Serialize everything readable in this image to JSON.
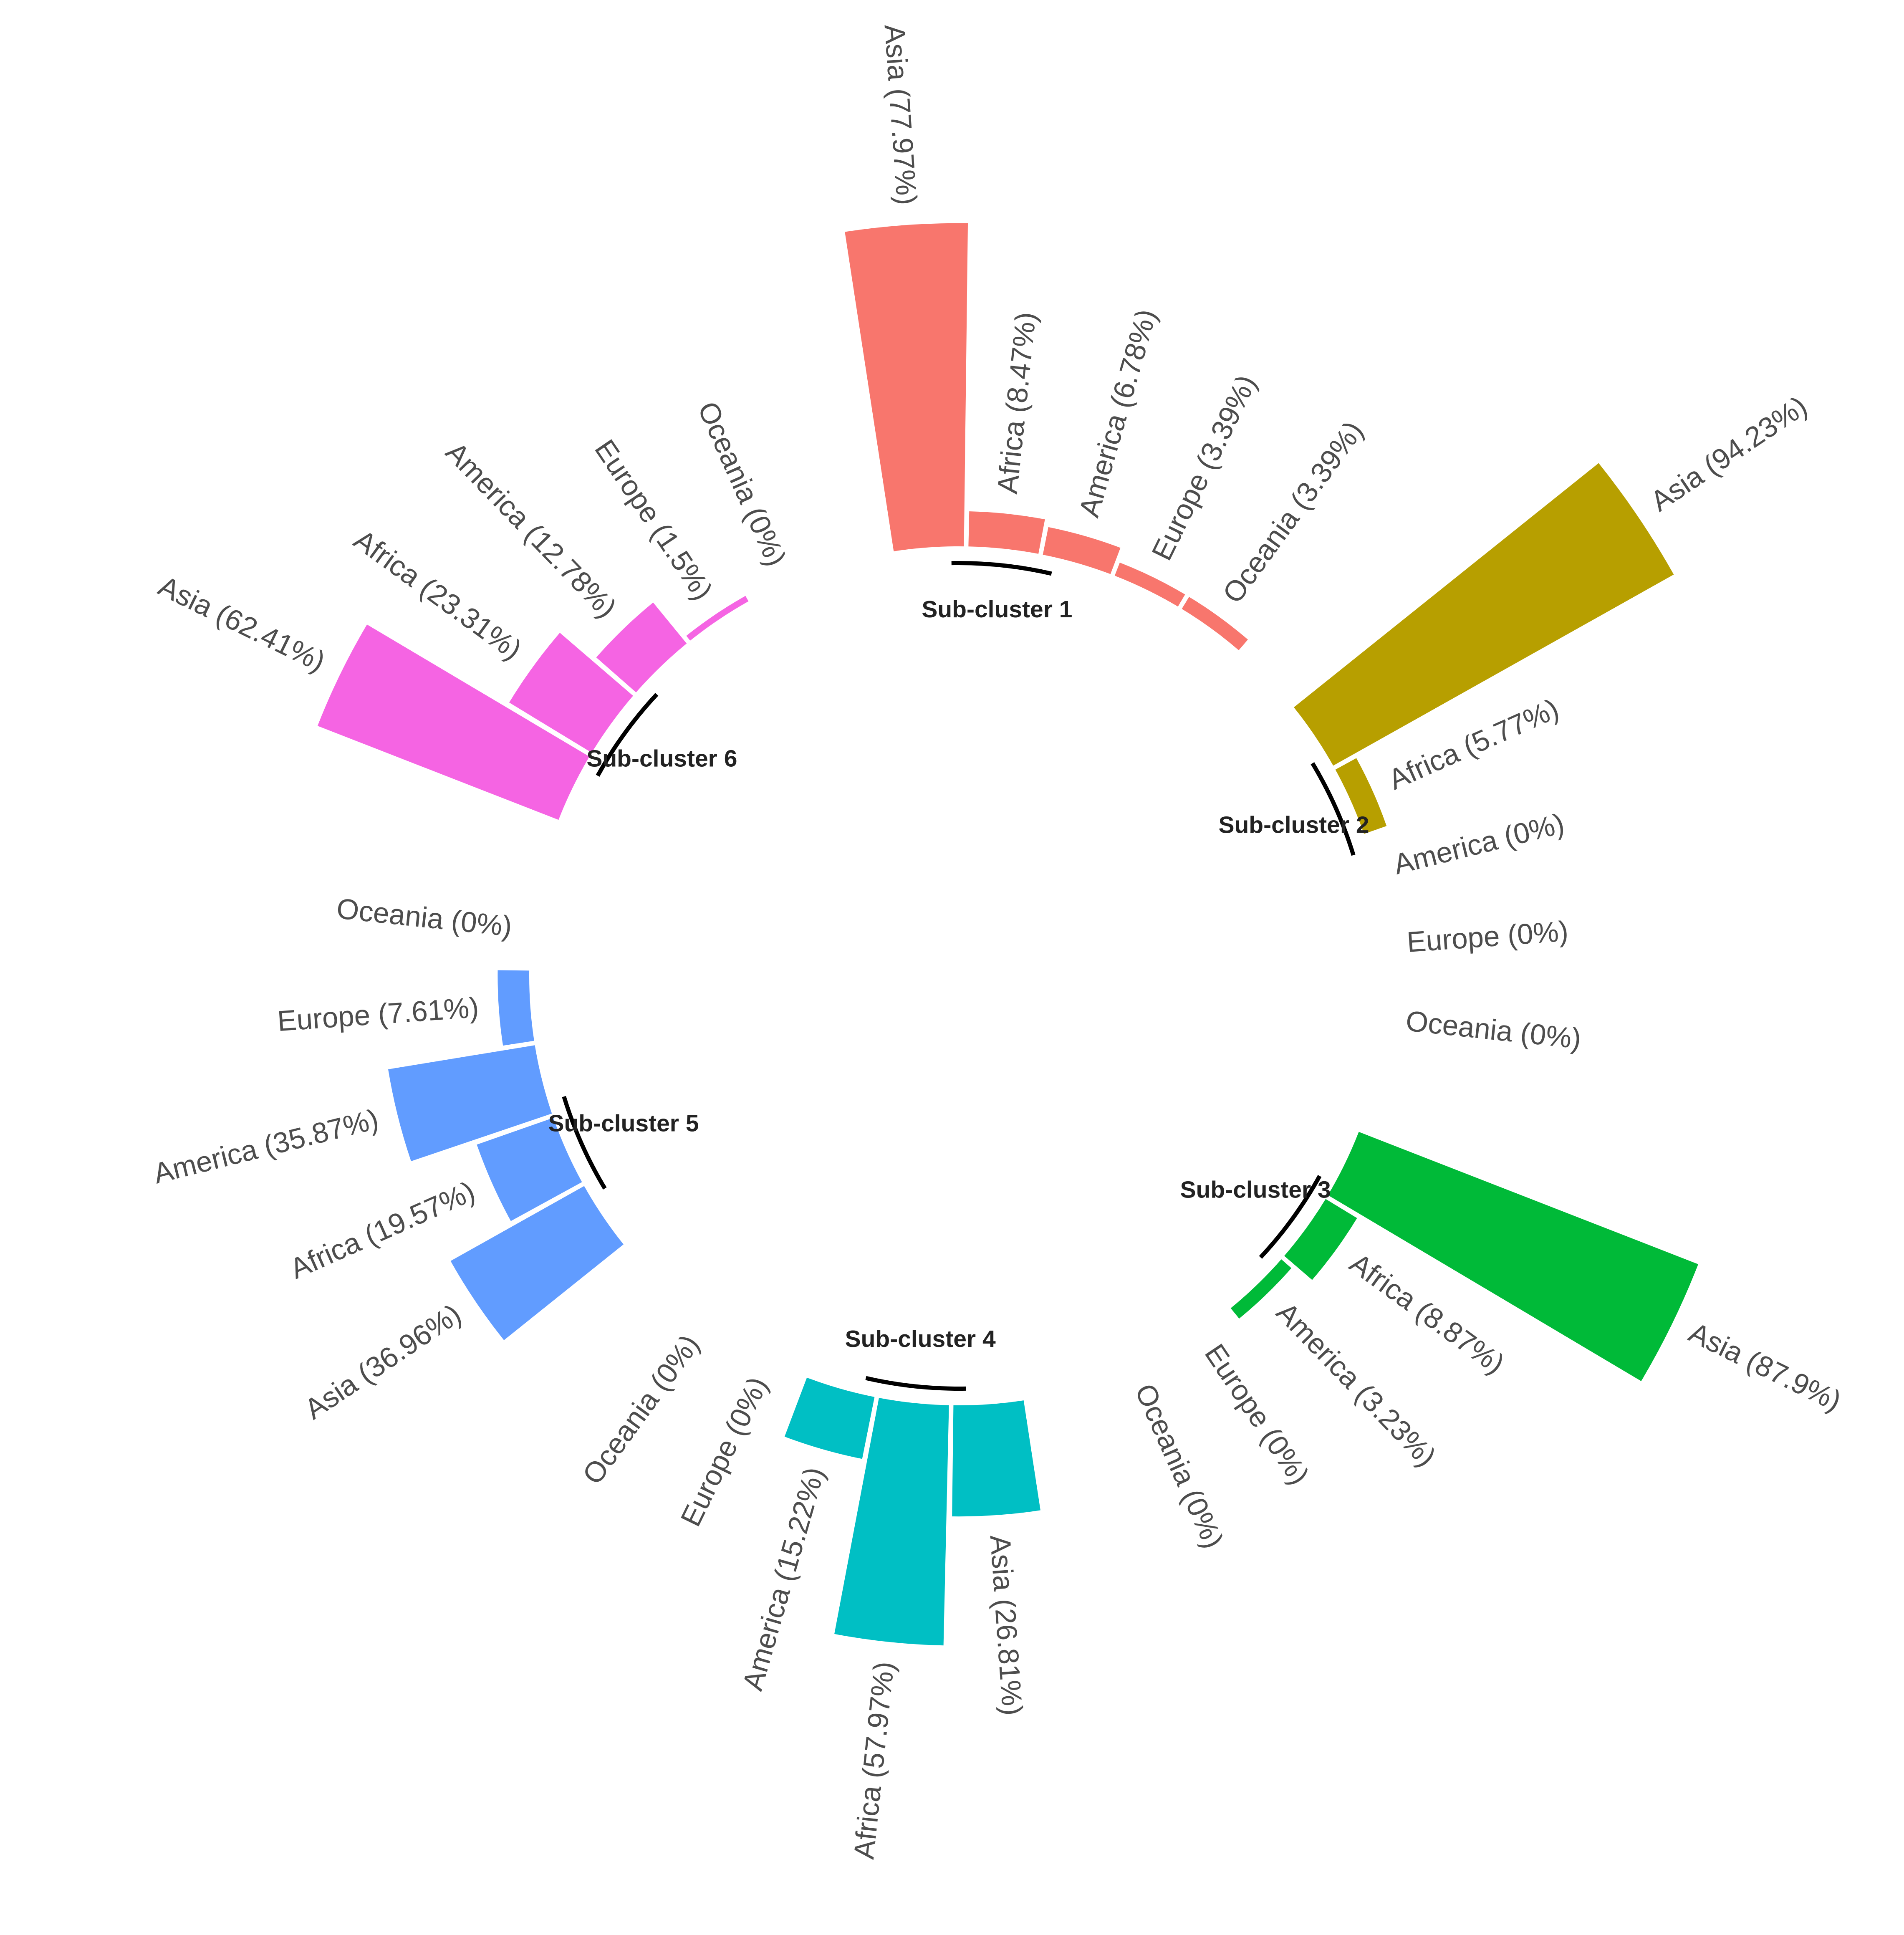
{
  "chart_data": {
    "type": "bar",
    "polar": true,
    "legend": "none",
    "grid": false,
    "ylim": [
      0,
      100
    ],
    "categories": [
      "Asia",
      "Africa",
      "America",
      "Europe",
      "Oceania"
    ],
    "groups": [
      {
        "name": "Sub-cluster 1",
        "color": "#F8766D",
        "values": [
          77.97,
          8.47,
          6.78,
          3.39,
          3.39
        ],
        "labels": [
          "Asia (77.97%)",
          "Africa (8.47%)",
          "America (6.78%)",
          "Europe (3.39%)",
          "Oceania (3.39%)"
        ]
      },
      {
        "name": "Sub-cluster 2",
        "color": "#B79F00",
        "values": [
          94.23,
          5.77,
          0,
          0,
          0
        ],
        "labels": [
          "Asia (94.23%)",
          "Africa (5.77%)",
          "America (0%)",
          "Europe (0%)",
          "Oceania (0%)"
        ]
      },
      {
        "name": "Sub-cluster 3",
        "color": "#00BA38",
        "values": [
          87.9,
          8.87,
          3.23,
          0,
          0
        ],
        "labels": [
          "Asia (87.9%)",
          "Africa (8.87%)",
          "America (3.23%)",
          "Europe (0%)",
          "Oceania (0%)"
        ]
      },
      {
        "name": "Sub-cluster 4",
        "color": "#00BFC4",
        "values": [
          26.81,
          57.97,
          15.22,
          0,
          0
        ],
        "labels": [
          "Asia (26.81%)",
          "Africa (57.97%)",
          "America (15.22%)",
          "Europe (0%)",
          "Oceania (0%)"
        ]
      },
      {
        "name": "Sub-cluster 5",
        "color": "#619CFF",
        "values": [
          36.96,
          19.57,
          35.87,
          7.61,
          0
        ],
        "labels": [
          "Asia (36.96%)",
          "Africa (19.57%)",
          "America (35.87%)",
          "Europe (7.61%)",
          "Oceania (0%)"
        ]
      },
      {
        "name": "Sub-cluster 6",
        "color": "#F564E3",
        "values": [
          62.41,
          23.31,
          12.78,
          1.5,
          0
        ],
        "labels": [
          "Asia (62.41%)",
          "Africa (23.31%)",
          "America (12.78%)",
          "Europe (1.5%)",
          "Oceania (0%)"
        ]
      }
    ]
  }
}
